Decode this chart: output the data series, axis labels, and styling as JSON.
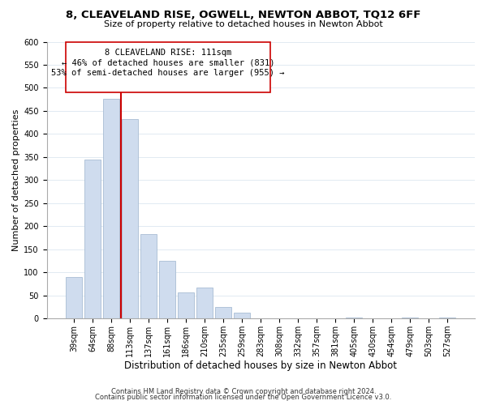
{
  "title": "8, CLEAVELAND RISE, OGWELL, NEWTON ABBOT, TQ12 6FF",
  "subtitle": "Size of property relative to detached houses in Newton Abbot",
  "xlabel": "Distribution of detached houses by size in Newton Abbot",
  "ylabel": "Number of detached properties",
  "bar_labels": [
    "39sqm",
    "64sqm",
    "88sqm",
    "113sqm",
    "137sqm",
    "161sqm",
    "186sqm",
    "210sqm",
    "235sqm",
    "259sqm",
    "283sqm",
    "308sqm",
    "332sqm",
    "357sqm",
    "381sqm",
    "405sqm",
    "430sqm",
    "454sqm",
    "479sqm",
    "503sqm",
    "527sqm"
  ],
  "bar_heights": [
    90,
    345,
    477,
    433,
    183,
    125,
    57,
    67,
    25,
    13,
    0,
    0,
    0,
    0,
    0,
    2,
    0,
    0,
    2,
    0,
    2
  ],
  "bar_color": "#cfdcee",
  "bar_edge_color": "#a8bdd4",
  "vline_x_idx": 3,
  "vline_color": "#cc0000",
  "annotation_line1": "8 CLEAVELAND RISE: 111sqm",
  "annotation_line2": "← 46% of detached houses are smaller (831)",
  "annotation_line3": "53% of semi-detached houses are larger (955) →",
  "annotation_box_color": "white",
  "annotation_box_edge": "#cc0000",
  "ylim": [
    0,
    600
  ],
  "yticks": [
    0,
    50,
    100,
    150,
    200,
    250,
    300,
    350,
    400,
    450,
    500,
    550,
    600
  ],
  "grid_color": "#dce6f0",
  "footer_line1": "Contains HM Land Registry data © Crown copyright and database right 2024.",
  "footer_line2": "Contains public sector information licensed under the Open Government Licence v3.0.",
  "title_fontsize": 9.5,
  "subtitle_fontsize": 8,
  "xlabel_fontsize": 8.5,
  "ylabel_fontsize": 8,
  "tick_fontsize": 7,
  "annotation_fontsize": 7.5,
  "footer_fontsize": 6
}
